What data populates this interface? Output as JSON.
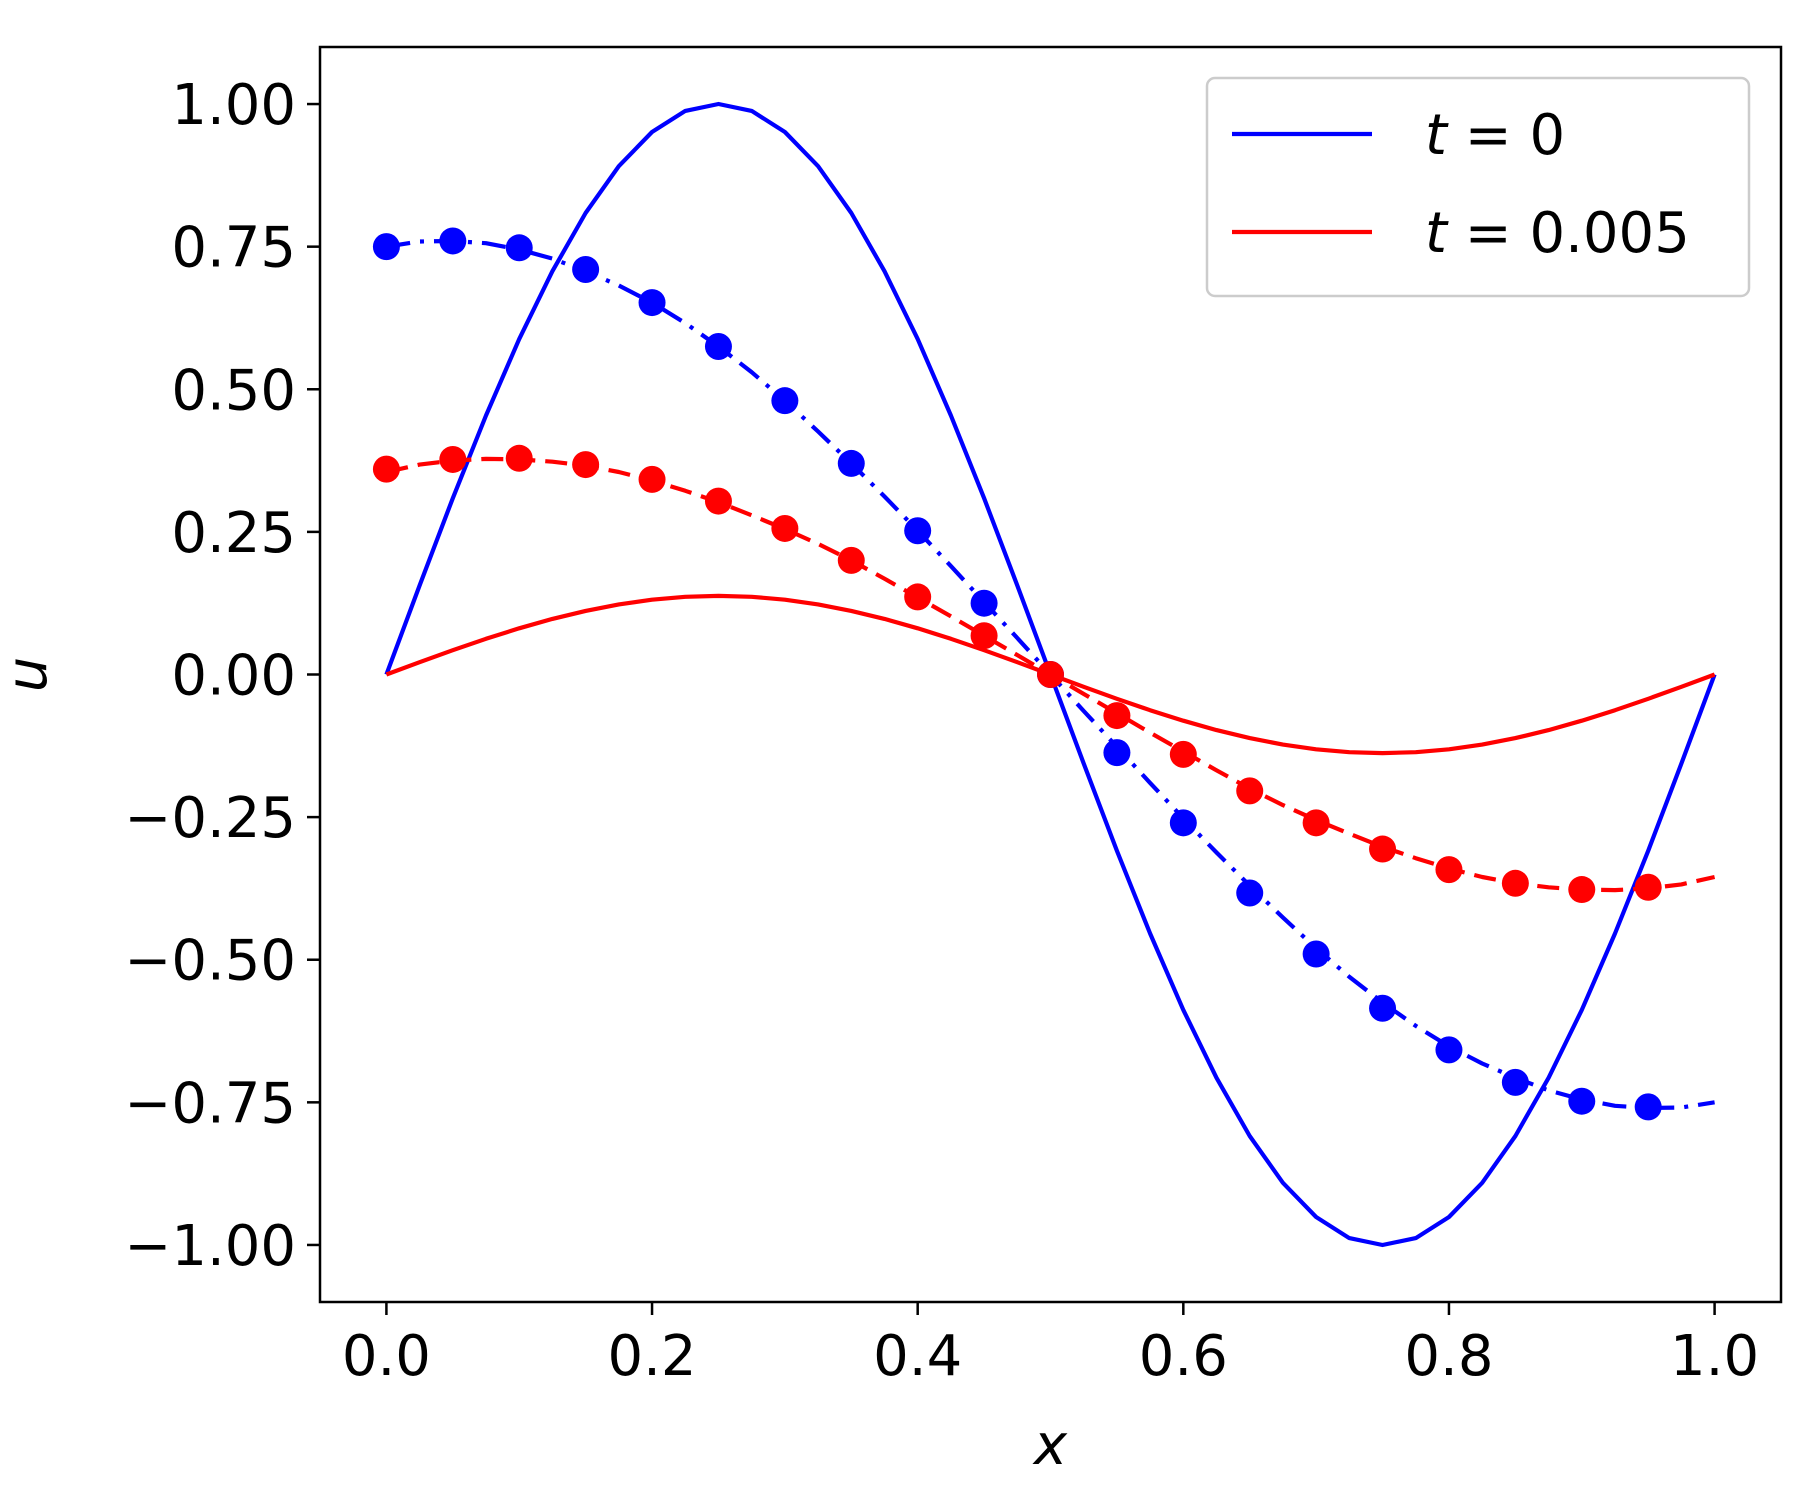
{
  "chart_data": {
    "type": "line",
    "title": "",
    "xlabel": "x",
    "ylabel": "u",
    "xlim": [
      -0.05,
      1.05
    ],
    "ylim": [
      -1.1,
      1.1
    ],
    "xticks": [
      "0.0",
      "0.2",
      "0.4",
      "0.6",
      "0.8",
      "1.0"
    ],
    "xtick_values": [
      0.0,
      0.2,
      0.4,
      0.6,
      0.8,
      1.0
    ],
    "yticks": [
      "1.00",
      "0.75",
      "0.50",
      "0.25",
      "0.00",
      "−0.25",
      "−0.50",
      "−0.75",
      "−1.00"
    ],
    "ytick_values": [
      1.0,
      0.75,
      0.5,
      0.25,
      0.0,
      -0.25,
      -0.5,
      -0.75,
      -1.0
    ],
    "grid": false,
    "legend": {
      "position": "top-right",
      "entries": [
        {
          "label_prefix": "t",
          "label_eq": " = ",
          "label_value": "0",
          "color": "#0000ff"
        },
        {
          "label_prefix": "t",
          "label_eq": " = ",
          "label_value": "0.005",
          "color": "#ff0000"
        }
      ]
    },
    "series": [
      {
        "name": "t = 0",
        "style": "solid",
        "color": "#0000ff",
        "x": [
          0.0,
          0.025,
          0.05,
          0.075,
          0.1,
          0.125,
          0.15,
          0.175,
          0.2,
          0.225,
          0.25,
          0.275,
          0.3,
          0.325,
          0.35,
          0.375,
          0.4,
          0.425,
          0.45,
          0.475,
          0.5,
          0.525,
          0.55,
          0.575,
          0.6,
          0.625,
          0.65,
          0.675,
          0.7,
          0.725,
          0.75,
          0.775,
          0.8,
          0.825,
          0.85,
          0.875,
          0.9,
          0.925,
          0.95,
          0.975,
          1.0
        ],
        "y": [
          0.0,
          0.156,
          0.309,
          0.454,
          0.588,
          0.707,
          0.809,
          0.891,
          0.951,
          0.988,
          1.0,
          0.988,
          0.951,
          0.891,
          0.809,
          0.707,
          0.588,
          0.454,
          0.309,
          0.156,
          0.0,
          -0.156,
          -0.309,
          -0.454,
          -0.588,
          -0.707,
          -0.809,
          -0.891,
          -0.951,
          -0.988,
          -1.0,
          -0.988,
          -0.951,
          -0.891,
          -0.809,
          -0.707,
          -0.588,
          -0.454,
          -0.309,
          -0.156,
          0.0
        ]
      },
      {
        "name": "t = 0.005",
        "style": "solid",
        "color": "#ff0000",
        "x": [
          0.0,
          0.025,
          0.05,
          0.075,
          0.1,
          0.125,
          0.15,
          0.175,
          0.2,
          0.225,
          0.25,
          0.275,
          0.3,
          0.325,
          0.35,
          0.375,
          0.4,
          0.425,
          0.45,
          0.475,
          0.5,
          0.525,
          0.55,
          0.575,
          0.6,
          0.625,
          0.65,
          0.675,
          0.7,
          0.725,
          0.75,
          0.775,
          0.8,
          0.825,
          0.85,
          0.875,
          0.9,
          0.925,
          0.95,
          0.975,
          1.0
        ],
        "y": [
          0.0,
          0.0215,
          0.0426,
          0.0626,
          0.081,
          0.0975,
          0.1115,
          0.1228,
          0.1311,
          0.1362,
          0.1378,
          0.1362,
          0.1311,
          0.1228,
          0.1115,
          0.0975,
          0.081,
          0.0626,
          0.0426,
          0.0215,
          0.0,
          -0.0215,
          -0.0426,
          -0.0626,
          -0.081,
          -0.0975,
          -0.1115,
          -0.1228,
          -0.1311,
          -0.1362,
          -0.1378,
          -0.1362,
          -0.1311,
          -0.1228,
          -0.1115,
          -0.0975,
          -0.081,
          -0.0626,
          -0.0426,
          -0.0215,
          0.0
        ]
      },
      {
        "style": "dashdot",
        "color": "#0000ff",
        "x": [
          0.0,
          0.025,
          0.05,
          0.075,
          0.1,
          0.125,
          0.15,
          0.175,
          0.2,
          0.225,
          0.25,
          0.275,
          0.3,
          0.325,
          0.35,
          0.375,
          0.4,
          0.425,
          0.45,
          0.475,
          0.5,
          0.525,
          0.55,
          0.575,
          0.6,
          0.625,
          0.65,
          0.675,
          0.7,
          0.725,
          0.75,
          0.775,
          0.8,
          0.825,
          0.85,
          0.875,
          0.9,
          0.925,
          0.95,
          0.975,
          1.0
        ],
        "y": [
          0.75,
          0.759,
          0.76,
          0.756,
          0.745,
          0.729,
          0.707,
          0.682,
          0.652,
          0.616,
          0.575,
          0.53,
          0.48,
          0.426,
          0.37,
          0.312,
          0.252,
          0.19,
          0.127,
          0.064,
          0.0,
          -0.064,
          -0.127,
          -0.19,
          -0.252,
          -0.312,
          -0.37,
          -0.426,
          -0.48,
          -0.53,
          -0.575,
          -0.616,
          -0.652,
          -0.682,
          -0.707,
          -0.729,
          -0.745,
          -0.756,
          -0.76,
          -0.759,
          -0.75
        ]
      },
      {
        "style": "dashed",
        "color": "#ff0000",
        "x": [
          0.0,
          0.025,
          0.05,
          0.075,
          0.1,
          0.125,
          0.15,
          0.175,
          0.2,
          0.225,
          0.25,
          0.275,
          0.3,
          0.325,
          0.35,
          0.375,
          0.4,
          0.425,
          0.45,
          0.475,
          0.5,
          0.525,
          0.55,
          0.575,
          0.6,
          0.625,
          0.65,
          0.675,
          0.7,
          0.725,
          0.75,
          0.775,
          0.8,
          0.825,
          0.85,
          0.875,
          0.9,
          0.925,
          0.95,
          0.975,
          1.0
        ],
        "y": [
          0.355,
          0.368,
          0.375,
          0.378,
          0.377,
          0.373,
          0.366,
          0.355,
          0.34,
          0.322,
          0.302,
          0.279,
          0.255,
          0.229,
          0.2,
          0.168,
          0.135,
          0.102,
          0.068,
          0.034,
          0.0,
          -0.034,
          -0.068,
          -0.102,
          -0.135,
          -0.168,
          -0.2,
          -0.229,
          -0.255,
          -0.279,
          -0.302,
          -0.322,
          -0.34,
          -0.355,
          -0.366,
          -0.373,
          -0.377,
          -0.378,
          -0.375,
          -0.368,
          -0.355
        ]
      },
      {
        "style": "markers",
        "color": "#0000ff",
        "x": [
          0.0,
          0.05,
          0.1,
          0.15,
          0.2,
          0.25,
          0.3,
          0.35,
          0.4,
          0.45,
          0.5,
          0.55,
          0.6,
          0.65,
          0.7,
          0.75,
          0.8,
          0.85,
          0.9,
          0.95
        ],
        "y": [
          0.75,
          0.76,
          0.748,
          0.71,
          0.652,
          0.575,
          0.48,
          0.37,
          0.252,
          0.125,
          0.0,
          -0.137,
          -0.26,
          -0.383,
          -0.49,
          -0.585,
          -0.658,
          -0.715,
          -0.748,
          -0.758
        ]
      },
      {
        "style": "markers",
        "color": "#ff0000",
        "x": [
          0.0,
          0.05,
          0.1,
          0.15,
          0.2,
          0.25,
          0.3,
          0.35,
          0.4,
          0.45,
          0.5,
          0.55,
          0.6,
          0.65,
          0.7,
          0.75,
          0.8,
          0.85,
          0.9,
          0.95
        ],
        "y": [
          0.36,
          0.377,
          0.379,
          0.368,
          0.342,
          0.304,
          0.256,
          0.2,
          0.136,
          0.068,
          0.0,
          -0.072,
          -0.14,
          -0.204,
          -0.26,
          -0.306,
          -0.342,
          -0.366,
          -0.377,
          -0.373
        ]
      }
    ]
  }
}
